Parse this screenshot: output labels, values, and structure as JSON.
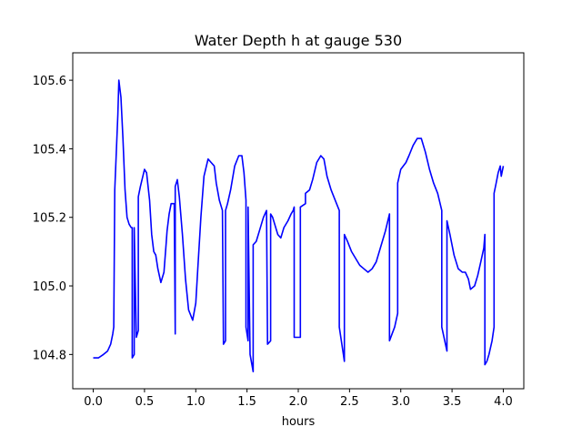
{
  "chart_data": {
    "type": "line",
    "title": "Water Depth h at gauge 530",
    "xlabel": "hours",
    "ylabel": "",
    "xlim": [
      -0.2,
      4.2
    ],
    "ylim": [
      104.7,
      105.68
    ],
    "xticks": [
      0.0,
      0.5,
      1.0,
      1.5,
      2.0,
      2.5,
      3.0,
      3.5,
      4.0
    ],
    "xtick_labels": [
      "0.0",
      "0.5",
      "1.0",
      "1.5",
      "2.0",
      "2.5",
      "3.0",
      "3.5",
      "4.0"
    ],
    "yticks": [
      104.8,
      105.0,
      105.2,
      105.4,
      105.6
    ],
    "ytick_labels": [
      "104.8",
      "105.0",
      "105.2",
      "105.4",
      "105.6"
    ],
    "grid": false,
    "line_color": "#0000ff",
    "series": [
      {
        "x": [
          0.0,
          0.05,
          0.1,
          0.14,
          0.17,
          0.19,
          0.2,
          0.21,
          0.24,
          0.25,
          0.27,
          0.29,
          0.31,
          0.33,
          0.35,
          0.37,
          0.38,
          0.38,
          0.4,
          0.4,
          0.42,
          0.44,
          0.44,
          0.46,
          0.5,
          0.52,
          0.55,
          0.57,
          0.59,
          0.61,
          0.63,
          0.66,
          0.69,
          0.71,
          0.72,
          0.74,
          0.76,
          0.79,
          0.8,
          0.8,
          0.82,
          0.84,
          0.87,
          0.9,
          0.93,
          0.97,
          1.0,
          1.02,
          1.05,
          1.08,
          1.12,
          1.15,
          1.18,
          1.2,
          1.23,
          1.26,
          1.27,
          1.27,
          1.29,
          1.29,
          1.31,
          1.34,
          1.38,
          1.42,
          1.45,
          1.47,
          1.49,
          1.49,
          1.51,
          1.51,
          1.53,
          1.56,
          1.56,
          1.59,
          1.62,
          1.66,
          1.69,
          1.7,
          1.7,
          1.73,
          1.73,
          1.75,
          1.78,
          1.8,
          1.83,
          1.86,
          1.9,
          1.93,
          1.95,
          1.96,
          1.96,
          2.0,
          2.02,
          2.02,
          2.07,
          2.07,
          2.11,
          2.14,
          2.18,
          2.22,
          2.25,
          2.28,
          2.32,
          2.36,
          2.4,
          2.4,
          2.44,
          2.45,
          2.45,
          2.48,
          2.52,
          2.56,
          2.6,
          2.64,
          2.68,
          2.72,
          2.76,
          2.8,
          2.85,
          2.89,
          2.89,
          2.94,
          2.97,
          2.97,
          3.0,
          3.05,
          3.08,
          3.12,
          3.16,
          3.2,
          3.24,
          3.28,
          3.32,
          3.36,
          3.4,
          3.4,
          3.45,
          3.45,
          3.48,
          3.52,
          3.56,
          3.6,
          3.63,
          3.66,
          3.68,
          3.72,
          3.75,
          3.78,
          3.81,
          3.82,
          3.82,
          3.84,
          3.86,
          3.89,
          3.91,
          3.91,
          3.93,
          3.95,
          3.97,
          3.98,
          4.0
        ],
        "y": [
          104.79,
          104.79,
          104.8,
          104.81,
          104.83,
          104.86,
          104.88,
          105.28,
          105.5,
          105.6,
          105.55,
          105.43,
          105.28,
          105.2,
          105.18,
          105.17,
          105.17,
          104.79,
          104.8,
          105.17,
          104.85,
          104.87,
          105.26,
          105.29,
          105.34,
          105.33,
          105.25,
          105.15,
          105.1,
          105.09,
          105.05,
          105.01,
          105.04,
          105.12,
          105.16,
          105.21,
          105.24,
          105.24,
          104.86,
          105.29,
          105.31,
          105.26,
          105.15,
          105.02,
          104.93,
          104.9,
          104.95,
          105.05,
          105.2,
          105.32,
          105.37,
          105.36,
          105.35,
          105.3,
          105.25,
          105.22,
          104.84,
          104.83,
          104.84,
          105.22,
          105.24,
          105.28,
          105.35,
          105.38,
          105.38,
          105.33,
          105.25,
          104.88,
          104.84,
          105.23,
          104.8,
          104.75,
          105.12,
          105.13,
          105.16,
          105.2,
          105.22,
          104.83,
          104.83,
          104.84,
          105.21,
          105.2,
          105.17,
          105.15,
          105.14,
          105.17,
          105.19,
          105.21,
          105.22,
          105.23,
          104.85,
          104.85,
          104.85,
          105.23,
          105.24,
          105.27,
          105.28,
          105.31,
          105.36,
          105.38,
          105.37,
          105.32,
          105.28,
          105.25,
          105.22,
          104.88,
          104.8,
          104.78,
          105.15,
          105.13,
          105.1,
          105.08,
          105.06,
          105.05,
          105.04,
          105.05,
          105.07,
          105.11,
          105.16,
          105.21,
          104.84,
          104.88,
          104.92,
          105.3,
          105.34,
          105.36,
          105.38,
          105.41,
          105.43,
          105.43,
          105.39,
          105.34,
          105.3,
          105.27,
          105.22,
          104.88,
          104.81,
          105.19,
          105.15,
          105.09,
          105.05,
          105.04,
          105.04,
          105.02,
          104.99,
          105.0,
          105.03,
          105.07,
          105.11,
          105.15,
          104.77,
          104.78,
          104.8,
          104.84,
          104.88,
          105.27,
          105.3,
          105.33,
          105.35,
          105.32,
          105.35
        ]
      }
    ]
  }
}
